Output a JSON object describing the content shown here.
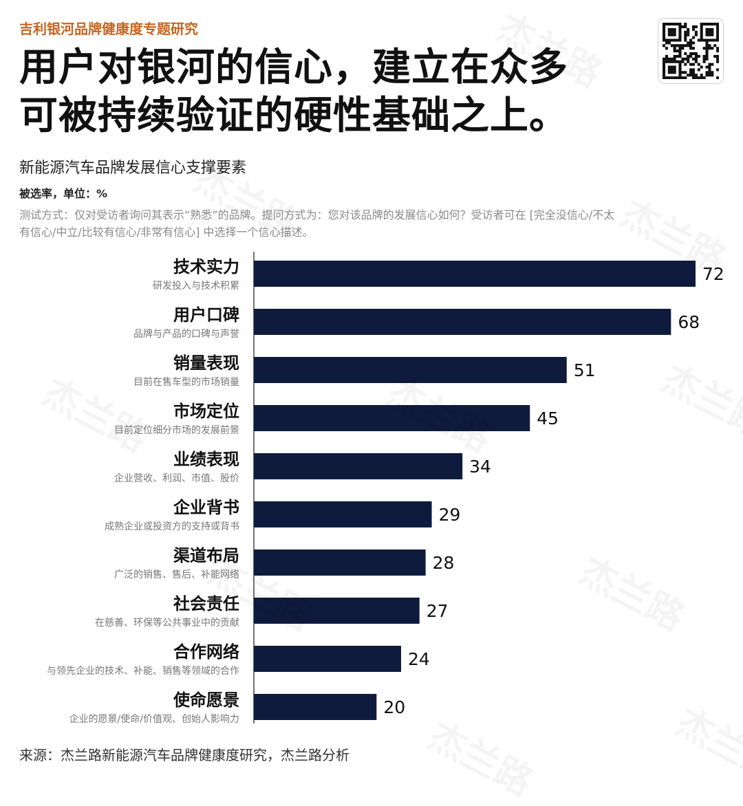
{
  "header": {
    "kicker": "吉利银河品牌健康度专题研究",
    "headline_line1": "用户对银河的信心，建立在众多",
    "headline_line2": "可被持续验证的硬性基础之上。"
  },
  "subtitle": "新能源汽车品牌发展信心支撑要素",
  "unit_note": "被选率，单位：%",
  "method_note": "测试方式：仅对受访者询问其表示“熟悉”的品牌。提问方式为：您对该品牌的发展信心如何？受访者可在 [完全没信心/不太有信心/中立/比较有信心/非常有信心] 中选择一个信心描述。",
  "source": "来源：杰兰路新能源汽车品牌健康度研究，杰兰路分析",
  "watermark": "杰兰路",
  "colors": {
    "bar": "#0f1b3d",
    "kicker": "#c9641e"
  },
  "chart_data": {
    "type": "bar",
    "orientation": "horizontal",
    "categories": [
      "技术实力",
      "用户口碑",
      "销量表现",
      "市场定位",
      "业绩表现",
      "企业背书",
      "渠道布局",
      "社会责任",
      "合作网络",
      "使命愿景"
    ],
    "descriptions": [
      "研发投入与技术积累",
      "品牌与产品的口碑与声誉",
      "目前在售车型的市场销量",
      "目前定位细分市场的发展前景",
      "企业营收、利润、市值、股价",
      "成熟企业或投资方的支持或背书",
      "广泛的销售、售后、补能网络",
      "在慈善、环保等公共事业中的贡献",
      "与领先企业的技术、补能、销售等领域的合作",
      "企业的愿景/使命/价值观、创始人影响力"
    ],
    "values": [
      72,
      68,
      51,
      45,
      34,
      29,
      28,
      27,
      24,
      20
    ],
    "xlim": [
      0,
      72
    ],
    "grid": false
  }
}
